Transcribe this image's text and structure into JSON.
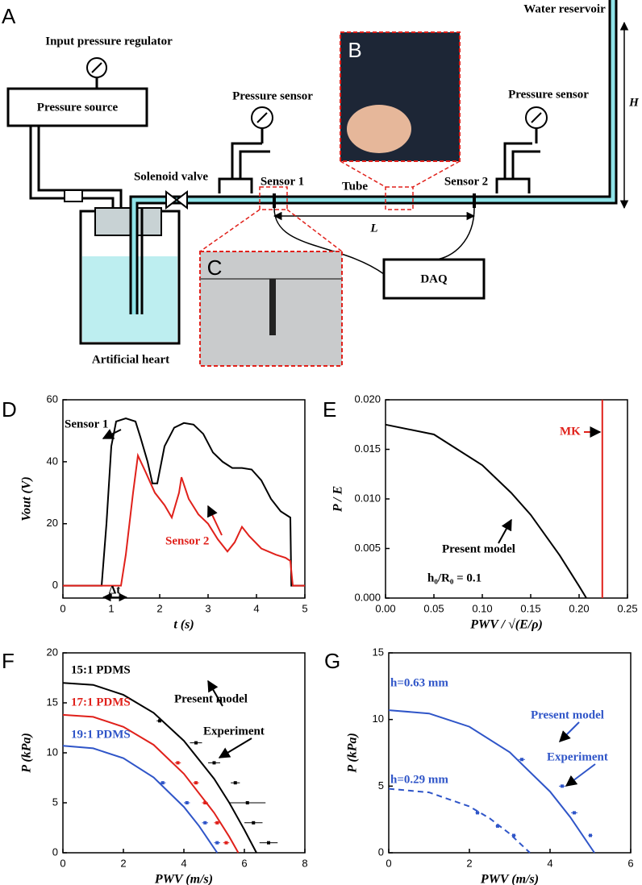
{
  "diagram": {
    "panel_label": "A",
    "water_reservoir": "Water reservoir",
    "input_pressure_regulator": "Input pressure regulator",
    "pressure_source": "Pressure source",
    "pressure_sensor_left": "Pressure sensor",
    "pressure_sensor_right": "Pressure sensor",
    "solenoid_valve": "Solenoid valve",
    "sensor_1": "Sensor 1",
    "tube": "Tube",
    "sensor_2": "Sensor 2",
    "length": "L",
    "height": "H",
    "daq": "DAQ",
    "artificial_heart": "Artificial heart",
    "inset_b": "B",
    "inset_c": "C"
  },
  "chart_data": [
    {
      "type": "line",
      "panel_label": "D",
      "x_label": "t (s)",
      "y_label": "Vout (V)",
      "xlim": [
        0,
        5
      ],
      "xticks": [
        0,
        1,
        2,
        3,
        4,
        5
      ],
      "ylim": [
        -4,
        60
      ],
      "yticks": [
        0,
        20,
        40,
        60
      ],
      "annotations": [
        "Δt"
      ],
      "series": [
        {
          "name": "Sensor 1",
          "color": "#000000",
          "mode": "line",
          "x": [
            0,
            0.8,
            0.9,
            1.0,
            1.1,
            1.3,
            1.5,
            1.6,
            1.75,
            1.85,
            1.95,
            2.1,
            2.3,
            2.5,
            2.7,
            2.9,
            3.1,
            3.3,
            3.5,
            3.7,
            3.9,
            4.1,
            4.3,
            4.5,
            4.7,
            4.72,
            5
          ],
          "values": [
            0,
            0,
            20,
            45,
            53,
            54,
            53,
            48,
            40,
            33,
            33,
            45,
            51,
            52.5,
            52,
            49,
            43,
            40,
            38,
            38,
            37.5,
            34,
            28,
            24,
            22,
            0,
            0
          ]
        },
        {
          "name": "Sensor 2",
          "color": "#e0211b",
          "mode": "line",
          "x": [
            0,
            1.2,
            1.3,
            1.45,
            1.55,
            1.7,
            1.9,
            2.1,
            2.25,
            2.4,
            2.45,
            2.6,
            2.8,
            3.0,
            3.2,
            3.4,
            3.55,
            3.7,
            3.85,
            4.1,
            4.4,
            4.6,
            4.7,
            4.75,
            5
          ],
          "values": [
            0,
            0,
            10,
            30,
            42,
            37,
            30,
            26,
            22,
            30,
            35,
            28,
            23,
            20,
            15,
            11,
            14,
            19,
            16,
            12,
            10,
            9,
            8,
            0,
            0
          ]
        }
      ]
    },
    {
      "type": "line",
      "panel_label": "E",
      "x_label": "PWV / √(E/ρ)",
      "y_label": "P / E",
      "xlim": [
        0,
        0.25
      ],
      "xticks": [
        {
          "value": 0,
          "label": "0.00"
        },
        {
          "value": 0.05,
          "label": "0.05"
        },
        {
          "value": 0.1,
          "label": "0.10"
        },
        {
          "value": 0.15,
          "label": "0.15"
        },
        {
          "value": 0.2,
          "label": "0.20"
        },
        {
          "value": 0.25,
          "label": "0.25"
        }
      ],
      "ylim": [
        0,
        0.02
      ],
      "yticks": [
        {
          "value": 0,
          "label": "0.000"
        },
        {
          "value": 0.005,
          "label": "0.005"
        },
        {
          "value": 0.01,
          "label": "0.010"
        },
        {
          "value": 0.015,
          "label": "0.015"
        },
        {
          "value": 0.02,
          "label": "0.020"
        }
      ],
      "annotations": [
        "h₀/R₀ = 0.1"
      ],
      "series": [
        {
          "name": "Present model",
          "color": "#000000",
          "mode": "line",
          "x": [
            0,
            0.05,
            0.1,
            0.13,
            0.15,
            0.18,
            0.2,
            0.2075
          ],
          "values": [
            0.0175,
            0.0165,
            0.0134,
            0.0106,
            0.0084,
            0.0043,
            0.0012,
            0
          ]
        },
        {
          "name": "MK",
          "color": "#e0211b",
          "mode": "line",
          "x": [
            0.224,
            0.224
          ],
          "values": [
            0,
            0.02
          ]
        }
      ]
    },
    {
      "type": "line",
      "panel_label": "F",
      "x_label": "PWV (m/s)",
      "y_label": "P (kPa)",
      "xlim": [
        0,
        8
      ],
      "xticks": [
        0,
        2,
        4,
        6,
        8
      ],
      "ylim": [
        0,
        20
      ],
      "yticks": [
        0,
        5,
        10,
        15,
        20
      ],
      "annotations": [
        "Present model",
        "Experiment"
      ],
      "series": [
        {
          "name": "15:1 PDMS",
          "color": "#000000",
          "mode": "line",
          "x": [
            0,
            1,
            2,
            3,
            4,
            5,
            5.5,
            6,
            6.4
          ],
          "values": [
            17,
            16.8,
            15.8,
            14,
            11.2,
            7.4,
            5,
            2.3,
            0
          ]
        },
        {
          "name": "17:1 PDMS",
          "color": "#e0211b",
          "mode": "line",
          "x": [
            0,
            1,
            2,
            3,
            4,
            5,
            5.5,
            5.8
          ],
          "values": [
            13.8,
            13.6,
            12.6,
            10.8,
            7.9,
            4,
            1.6,
            0
          ]
        },
        {
          "name": "19:1 PDMS",
          "color": "#2f55c8",
          "mode": "line",
          "x": [
            0,
            1,
            2,
            3,
            4,
            4.5,
            5.1
          ],
          "values": [
            10.7,
            10.45,
            9.46,
            7.54,
            4.59,
            2.68,
            0
          ]
        },
        {
          "color": "#000000",
          "mode": "markers",
          "x": [
            3.2,
            4.4,
            5.0,
            5.7,
            6.1,
            6.3,
            6.8
          ],
          "xerr": [
            0.1,
            0.2,
            0.2,
            0.15,
            0.6,
            0.3,
            0.3
          ],
          "values": [
            13.2,
            11,
            9,
            7,
            5,
            3,
            1
          ]
        },
        {
          "color": "#e0211b",
          "mode": "markers",
          "x": [
            3.8,
            4.4,
            4.7,
            5.1,
            5.4
          ],
          "xerr": [
            0.1,
            0.1,
            0.1,
            0.1,
            0.1
          ],
          "values": [
            9,
            7,
            5,
            3,
            1
          ]
        },
        {
          "color": "#2f55c8",
          "mode": "markers",
          "x": [
            3.3,
            4.1,
            4.7,
            5.1
          ],
          "xerr": [
            0.1,
            0.1,
            0.1,
            0.1
          ],
          "values": [
            7,
            5,
            3,
            1
          ]
        }
      ]
    },
    {
      "type": "line",
      "panel_label": "G",
      "x_label": "PWV (m/s)",
      "y_label": "P (kPa)",
      "xlim": [
        0,
        6
      ],
      "xticks": [
        0,
        2,
        4,
        6
      ],
      "ylim": [
        0,
        15
      ],
      "yticks": [
        0,
        5,
        10,
        15
      ],
      "annotations": [
        "Present model",
        "Experiment"
      ],
      "series": [
        {
          "name": "h=0.63 mm",
          "color": "#2f55c8",
          "mode": "line",
          "x": [
            0,
            1,
            2,
            3,
            4,
            4.5,
            5.1
          ],
          "values": [
            10.7,
            10.45,
            9.46,
            7.54,
            4.59,
            2.68,
            0
          ]
        },
        {
          "name": "h=0.29 mm",
          "color": "#2f55c8",
          "mode": "line",
          "dashed": true,
          "x": [
            0,
            1,
            2,
            2.5,
            3,
            3.5
          ],
          "values": [
            4.8,
            4.53,
            3.48,
            2.59,
            1.43,
            0
          ]
        },
        {
          "color": "#2f55c8",
          "mode": "markers",
          "x": [
            3.3,
            4.3,
            4.6,
            5.0
          ],
          "xerr": [
            0.08,
            0.08,
            0.08,
            0.05
          ],
          "values": [
            7,
            5,
            3,
            1.3
          ]
        },
        {
          "color": "#2f55c8",
          "mode": "markers",
          "x": [
            2.2,
            2.7,
            3.1
          ],
          "xerr": [
            0.05,
            0.05,
            0.05
          ],
          "values": [
            3,
            2,
            1.3
          ]
        }
      ]
    }
  ]
}
